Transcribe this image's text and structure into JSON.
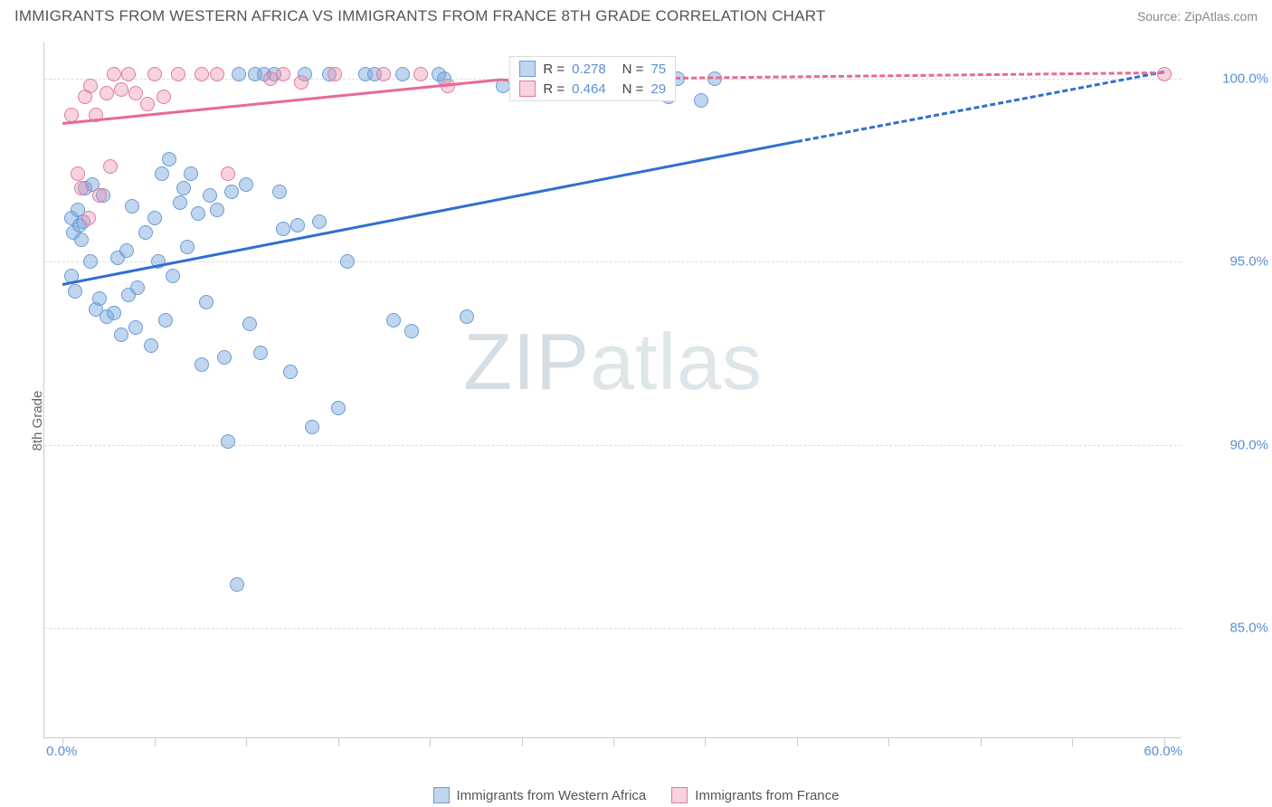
{
  "title": "IMMIGRANTS FROM WESTERN AFRICA VS IMMIGRANTS FROM FRANCE 8TH GRADE CORRELATION CHART",
  "source": "Source: ZipAtlas.com",
  "watermark_a": "ZIP",
  "watermark_b": "atlas",
  "chart": {
    "type": "scatter",
    "ylabel": "8th Grade",
    "xlim": [
      -1,
      61
    ],
    "ylim": [
      82,
      101
    ],
    "background_color": "#ffffff",
    "grid_color": "#dddddd",
    "axis_color": "#cccccc",
    "label_fontsize": 15,
    "yticks": [
      {
        "v": 85.0,
        "label": "85.0%"
      },
      {
        "v": 90.0,
        "label": "90.0%"
      },
      {
        "v": 95.0,
        "label": "95.0%"
      },
      {
        "v": 100.0,
        "label": "100.0%"
      }
    ],
    "xticks": [
      {
        "v": 0.0,
        "label": "0.0%"
      },
      {
        "v": 5.0,
        "label": ""
      },
      {
        "v": 10.0,
        "label": ""
      },
      {
        "v": 15.0,
        "label": ""
      },
      {
        "v": 20.0,
        "label": ""
      },
      {
        "v": 25.0,
        "label": ""
      },
      {
        "v": 30.0,
        "label": ""
      },
      {
        "v": 35.0,
        "label": ""
      },
      {
        "v": 40.0,
        "label": ""
      },
      {
        "v": 45.0,
        "label": ""
      },
      {
        "v": 50.0,
        "label": ""
      },
      {
        "v": 55.0,
        "label": ""
      },
      {
        "v": 60.0,
        "label": "60.0%"
      }
    ],
    "ytick_color": "#5b8fd6",
    "xtick_color": "#5b8fd6"
  },
  "series": [
    {
      "name": "Immigrants from Western Africa",
      "fill": "rgba(115,165,220,0.45)",
      "stroke": "#6a9cd4",
      "line_color": "#2f6fd0",
      "marker_radius": 8,
      "R": "0.278",
      "N": "75",
      "trend": {
        "x1": 0,
        "y1": 94.4,
        "x2": 40,
        "y2": 98.3,
        "dash_from": 40,
        "x3": 60,
        "y3": 100.2
      },
      "points": [
        [
          0.5,
          96.2
        ],
        [
          0.6,
          95.8
        ],
        [
          0.8,
          96.4
        ],
        [
          0.9,
          96.0
        ],
        [
          1.0,
          95.6
        ],
        [
          1.1,
          96.1
        ],
        [
          0.7,
          94.2
        ],
        [
          0.5,
          94.6
        ],
        [
          1.2,
          97.0
        ],
        [
          1.6,
          97.1
        ],
        [
          1.5,
          95.0
        ],
        [
          1.8,
          93.7
        ],
        [
          2.0,
          94.0
        ],
        [
          2.4,
          93.5
        ],
        [
          2.8,
          93.6
        ],
        [
          2.2,
          96.8
        ],
        [
          3.0,
          95.1
        ],
        [
          3.2,
          93.0
        ],
        [
          3.6,
          94.1
        ],
        [
          3.5,
          95.3
        ],
        [
          3.8,
          96.5
        ],
        [
          4.0,
          93.2
        ],
        [
          4.1,
          94.3
        ],
        [
          4.5,
          95.8
        ],
        [
          4.8,
          92.7
        ],
        [
          5.0,
          96.2
        ],
        [
          5.2,
          95.0
        ],
        [
          5.4,
          97.4
        ],
        [
          5.6,
          93.4
        ],
        [
          5.8,
          97.8
        ],
        [
          6.0,
          94.6
        ],
        [
          6.4,
          96.6
        ],
        [
          6.6,
          97.0
        ],
        [
          6.8,
          95.4
        ],
        [
          7.0,
          97.4
        ],
        [
          7.4,
          96.3
        ],
        [
          7.6,
          92.2
        ],
        [
          7.8,
          93.9
        ],
        [
          8.0,
          96.8
        ],
        [
          8.4,
          96.4
        ],
        [
          8.8,
          92.4
        ],
        [
          9.0,
          90.1
        ],
        [
          9.2,
          96.9
        ],
        [
          9.6,
          100.1
        ],
        [
          10.0,
          97.1
        ],
        [
          10.2,
          93.3
        ],
        [
          10.5,
          100.1
        ],
        [
          10.8,
          92.5
        ],
        [
          11.0,
          100.1
        ],
        [
          11.5,
          100.1
        ],
        [
          11.8,
          96.9
        ],
        [
          12.0,
          95.9
        ],
        [
          12.4,
          92.0
        ],
        [
          12.8,
          96.0
        ],
        [
          13.2,
          100.1
        ],
        [
          13.6,
          90.5
        ],
        [
          14.0,
          96.1
        ],
        [
          14.5,
          100.1
        ],
        [
          15.0,
          91.0
        ],
        [
          15.5,
          95.0
        ],
        [
          16.5,
          100.1
        ],
        [
          17.0,
          100.1
        ],
        [
          18.0,
          93.4
        ],
        [
          18.5,
          100.1
        ],
        [
          19.0,
          93.1
        ],
        [
          20.5,
          100.1
        ],
        [
          20.8,
          100.0
        ],
        [
          22.0,
          93.5
        ],
        [
          24.0,
          99.8
        ],
        [
          9.5,
          86.2
        ],
        [
          31.5,
          99.9
        ],
        [
          33.5,
          100.0
        ],
        [
          35.5,
          100.0
        ],
        [
          33.0,
          99.5
        ],
        [
          34.8,
          99.4
        ]
      ]
    },
    {
      "name": "Immigrants from France",
      "fill": "rgba(235,145,175,0.40)",
      "stroke": "#e17aa0",
      "line_color": "#e86a94",
      "marker_radius": 8,
      "R": "0.464",
      "N": "29",
      "trend": {
        "x1": 0,
        "y1": 98.8,
        "x2": 24,
        "y2": 100.0,
        "dash_from": 24,
        "x3": 60,
        "y3": 100.2
      },
      "points": [
        [
          0.5,
          99.0
        ],
        [
          0.8,
          97.4
        ],
        [
          1.0,
          97.0
        ],
        [
          1.2,
          99.5
        ],
        [
          1.4,
          96.2
        ],
        [
          1.5,
          99.8
        ],
        [
          1.8,
          99.0
        ],
        [
          2.0,
          96.8
        ],
        [
          2.4,
          99.6
        ],
        [
          2.6,
          97.6
        ],
        [
          2.8,
          100.1
        ],
        [
          3.2,
          99.7
        ],
        [
          3.6,
          100.1
        ],
        [
          4.0,
          99.6
        ],
        [
          4.6,
          99.3
        ],
        [
          5.0,
          100.1
        ],
        [
          5.5,
          99.5
        ],
        [
          6.3,
          100.1
        ],
        [
          7.6,
          100.1
        ],
        [
          8.4,
          100.1
        ],
        [
          9.0,
          97.4
        ],
        [
          11.3,
          100.0
        ],
        [
          12.0,
          100.1
        ],
        [
          13.0,
          99.9
        ],
        [
          14.8,
          100.1
        ],
        [
          17.5,
          100.1
        ],
        [
          19.5,
          100.1
        ],
        [
          21.0,
          99.8
        ],
        [
          60.0,
          100.1
        ]
      ]
    }
  ],
  "legend_top": {
    "r_label": "R =",
    "n_label": "N =",
    "r_color": "#5b8fd6",
    "text_color": "#555555"
  },
  "legend_bottom_series": [
    {
      "label": "Immigrants from Western Africa",
      "fill": "rgba(115,165,220,0.45)",
      "stroke": "#6a9cd4"
    },
    {
      "label": "Immigrants from France",
      "fill": "rgba(235,145,175,0.40)",
      "stroke": "#e17aa0"
    }
  ]
}
